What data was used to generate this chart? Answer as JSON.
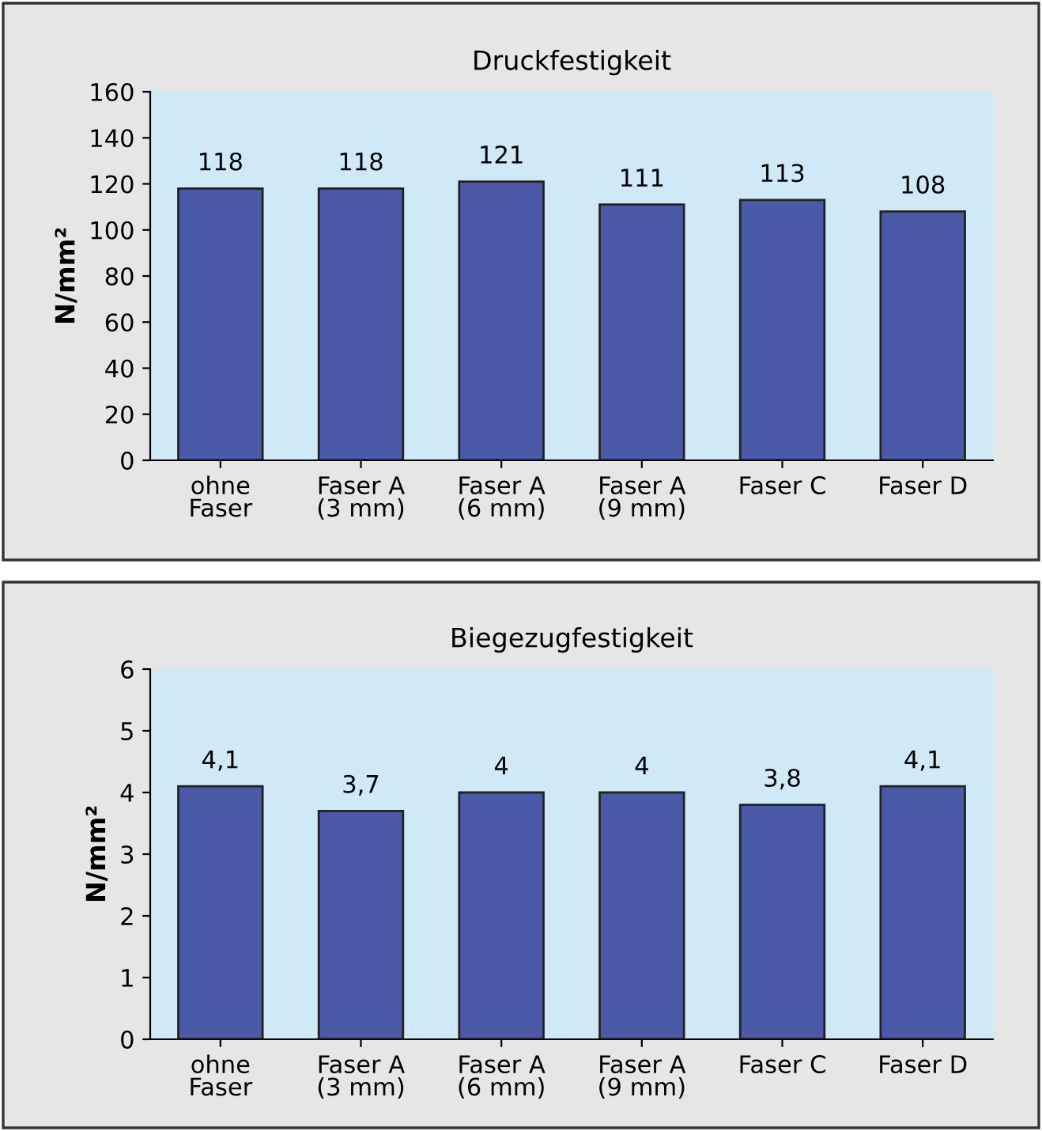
{
  "chart_data": [
    {
      "type": "bar",
      "title": "Druckfestigkeit",
      "ylabel": "N/mm²",
      "categories": [
        "ohne\nFaser",
        "Faser A\n(3 mm)",
        "Faser A\n(6 mm)",
        "Faser A\n(9 mm)",
        "Faser C",
        "Faser D"
      ],
      "values": [
        118,
        118,
        121,
        111,
        113,
        108
      ],
      "color": "#4a5aa8",
      "ylim": [
        0,
        160
      ],
      "yticks": [
        0,
        20,
        40,
        60,
        80,
        100,
        120,
        140,
        160
      ],
      "data_labels": true,
      "grid": false,
      "legend": false
    },
    {
      "type": "bar",
      "title": "Biegezugfestigkeit",
      "ylabel": "N/mm²",
      "categories": [
        "ohne\nFaser",
        "Faser A\n(3 mm)",
        "Faser A\n(6 mm)",
        "Faser A\n(9 mm)",
        "Faser C",
        "Faser D"
      ],
      "values": [
        4.1,
        3.7,
        4,
        4,
        3.8,
        4.1
      ],
      "value_labels": [
        "4,1",
        "3,7",
        "4",
        "4",
        "3,8",
        "4,1"
      ],
      "color": "#4a5aa8",
      "ylim": [
        0,
        6
      ],
      "yticks": [
        0,
        1,
        2,
        3,
        4,
        5,
        6
      ],
      "grid": false,
      "legend": false
    }
  ]
}
